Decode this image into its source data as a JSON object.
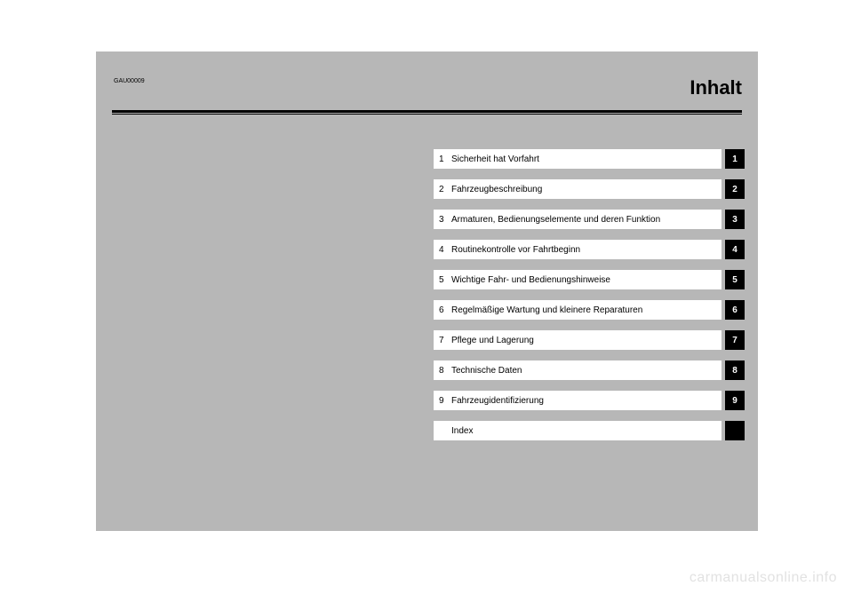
{
  "header": {
    "doc_code": "GAU00009",
    "title": "Inhalt"
  },
  "toc": {
    "items": [
      {
        "num": "1",
        "label": "Sicherheit hat Vorfahrt",
        "tab": "1"
      },
      {
        "num": "2",
        "label": "Fahrzeugbeschreibung",
        "tab": "2"
      },
      {
        "num": "3",
        "label": "Armaturen, Bedienungselemente und deren Funktion",
        "tab": "3"
      },
      {
        "num": "4",
        "label": "Routinekontrolle vor Fahrtbeginn",
        "tab": "4"
      },
      {
        "num": "5",
        "label": "Wichtige Fahr- und Bedienungshinweise",
        "tab": "5"
      },
      {
        "num": "6",
        "label": "Regelmäßige Wartung und kleinere Reparaturen",
        "tab": "6"
      },
      {
        "num": "7",
        "label": "Pflege und Lagerung",
        "tab": "7"
      },
      {
        "num": "8",
        "label": "Technische Daten",
        "tab": "8"
      },
      {
        "num": "9",
        "label": "Fahrzeugidentifizierung",
        "tab": "9"
      },
      {
        "num": "",
        "label": "Index",
        "tab": ""
      }
    ]
  },
  "watermark": "carmanualsonline.info",
  "style": {
    "page_bg": "#b7b7b7",
    "row_bg": "#ffffff",
    "tab_bg": "#000000",
    "tab_fg": "#ffffff",
    "watermark_color": "#e2e2e2",
    "title_fontsize": 22,
    "label_fontsize": 10
  }
}
